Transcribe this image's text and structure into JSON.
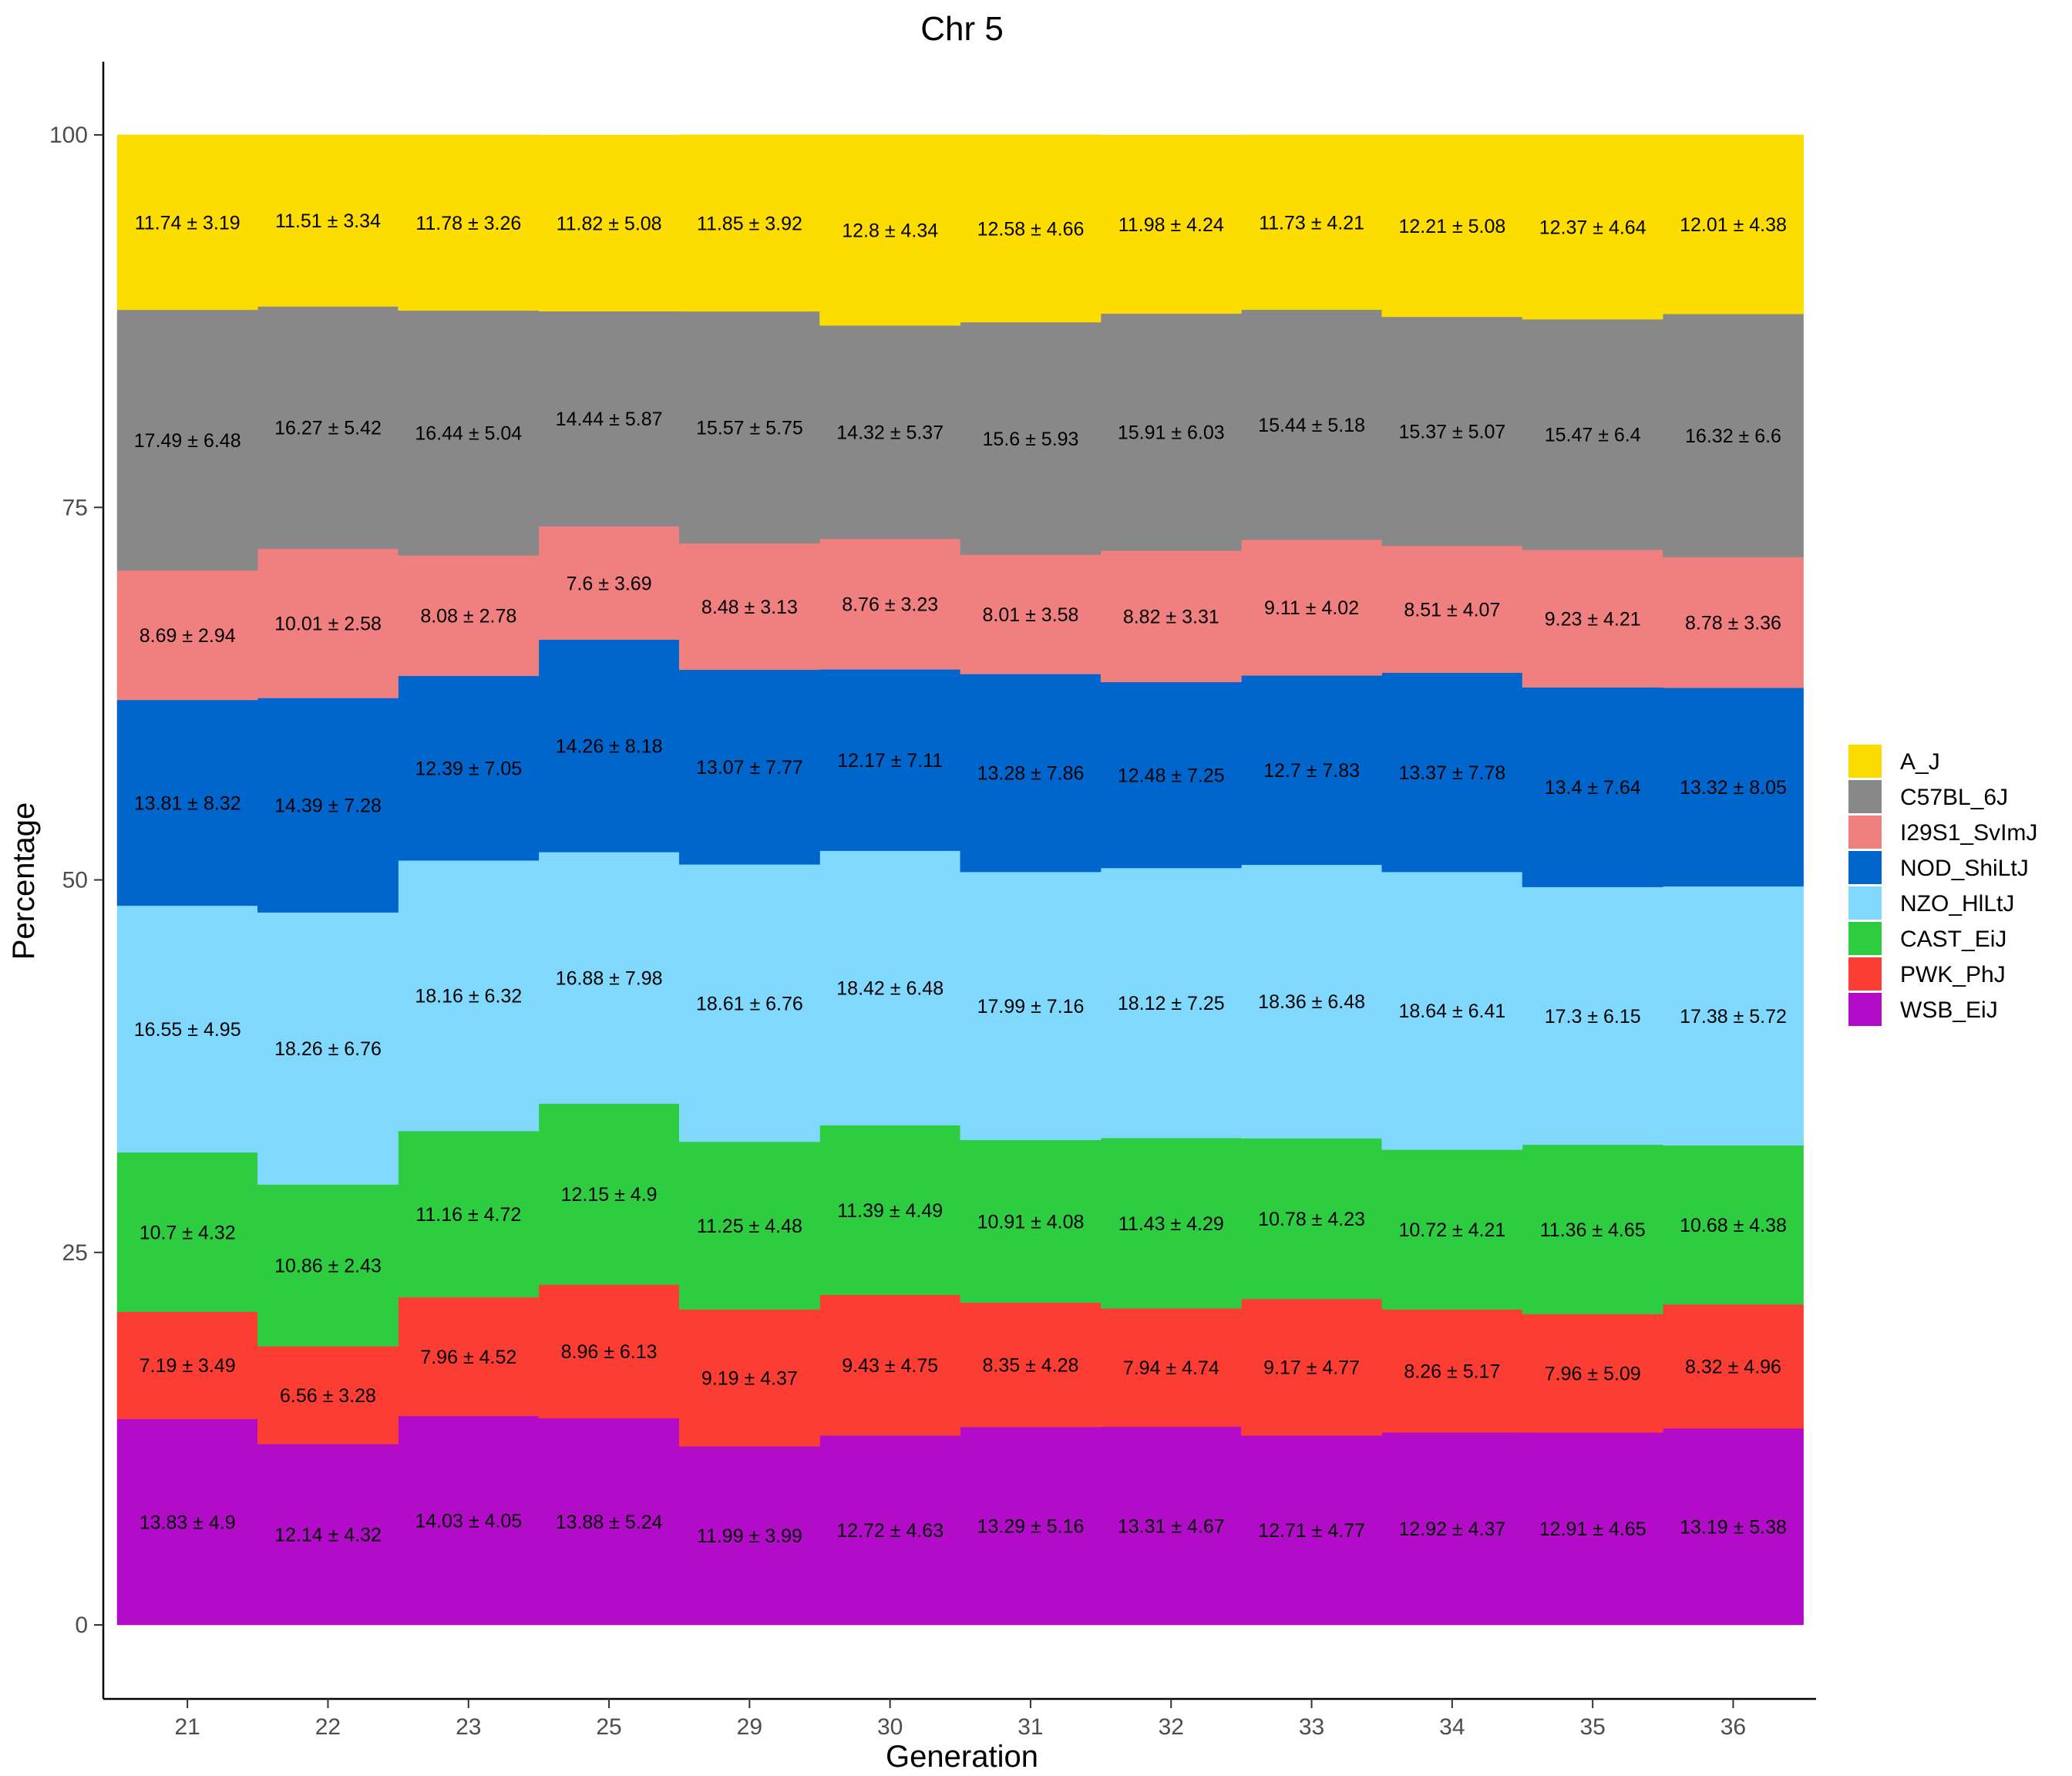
{
  "chart_data": {
    "type": "area",
    "title": "Chr 5",
    "xlabel": "Generation",
    "ylabel": "Percentage",
    "ylim": [
      -5,
      105
    ],
    "yticks": [
      0,
      25,
      50,
      75,
      100
    ],
    "categories": [
      "21",
      "22",
      "23",
      "25",
      "29",
      "30",
      "31",
      "32",
      "33",
      "34",
      "35",
      "36"
    ],
    "stacking": "bottom-to-top",
    "legend_position": "right",
    "grid": false,
    "series": [
      {
        "name": "WSB_EiJ",
        "color": "#b20cc9",
        "values": [
          13.83,
          12.14,
          14.03,
          13.88,
          11.99,
          12.72,
          13.29,
          13.31,
          12.71,
          12.92,
          12.91,
          13.19
        ],
        "labels": [
          "13.83 ± 4.9",
          "12.14 ± 4.32",
          "14.03 ± 4.05",
          "13.88 ± 5.24",
          "11.99 ± 3.99",
          "12.72 ± 4.63",
          "13.29 ± 5.16",
          "13.31 ± 4.67",
          "12.71 ± 4.77",
          "12.92 ± 4.37",
          "12.91 ± 4.65",
          "13.19 ± 5.38"
        ]
      },
      {
        "name": "PWK_PhJ",
        "color": "#fc3d33",
        "values": [
          7.19,
          6.56,
          7.96,
          8.96,
          9.19,
          9.43,
          8.35,
          7.94,
          9.17,
          8.26,
          7.96,
          8.32
        ],
        "labels": [
          "7.19 ± 3.49",
          "6.56 ± 3.28",
          "7.96 ± 4.52",
          "8.96 ± 6.13",
          "9.19 ± 4.37",
          "9.43 ± 4.75",
          "8.35 ± 4.28",
          "7.94 ± 4.74",
          "9.17 ± 4.77",
          "8.26 ± 5.17",
          "7.96 ± 5.09",
          "8.32 ± 4.96"
        ]
      },
      {
        "name": "CAST_EiJ",
        "color": "#2ecc40",
        "values": [
          10.7,
          10.86,
          11.16,
          12.15,
          11.25,
          11.39,
          10.91,
          11.43,
          10.78,
          10.72,
          11.36,
          10.68
        ],
        "labels": [
          "10.7 ± 4.32",
          "10.86 ± 2.43",
          "11.16 ± 4.72",
          "12.15 ± 4.9",
          "11.25 ± 4.48",
          "11.39 ± 4.49",
          "10.91 ± 4.08",
          "11.43 ± 4.29",
          "10.78 ± 4.23",
          "10.72 ± 4.21",
          "11.36 ± 4.65",
          "10.68 ± 4.38"
        ]
      },
      {
        "name": "NZO_HlLtJ",
        "color": "#80d9fc",
        "values": [
          16.55,
          18.26,
          18.16,
          16.88,
          18.61,
          18.42,
          17.99,
          18.12,
          18.36,
          18.64,
          17.3,
          17.38
        ],
        "labels": [
          "16.55 ± 4.95",
          "18.26 ± 6.76",
          "18.16 ± 6.32",
          "16.88 ± 7.98",
          "18.61 ± 6.76",
          "18.42 ± 6.48",
          "17.99 ± 7.16",
          "18.12 ± 7.25",
          "18.36 ± 6.48",
          "18.64 ± 6.41",
          "17.3 ± 6.15",
          "17.38 ± 5.72"
        ]
      },
      {
        "name": "NOD_ShiLtJ",
        "color": "#0066cc",
        "values": [
          13.81,
          14.39,
          12.39,
          14.26,
          13.07,
          12.17,
          13.28,
          12.48,
          12.7,
          13.37,
          13.4,
          13.32
        ],
        "labels": [
          "13.81 ± 8.32",
          "14.39 ± 7.28",
          "12.39 ± 7.05",
          "14.26 ± 8.18",
          "13.07 ± 7.77",
          "12.17 ± 7.11",
          "13.28 ± 7.86",
          "12.48 ± 7.25",
          "12.7 ± 7.83",
          "13.37 ± 7.78",
          "13.4 ± 7.64",
          "13.32 ± 8.05"
        ]
      },
      {
        "name": "I29S1_SvImJ",
        "color": "#f08080",
        "values": [
          8.69,
          10.01,
          8.08,
          7.6,
          8.48,
          8.76,
          8.01,
          8.82,
          9.11,
          8.51,
          9.23,
          8.78
        ],
        "labels": [
          "8.69 ± 2.94",
          "10.01 ± 2.58",
          "8.08 ± 2.78",
          "7.6 ± 3.69",
          "8.48 ± 3.13",
          "8.76 ± 3.23",
          "8.01 ± 3.58",
          "8.82 ± 3.31",
          "9.11 ± 4.02",
          "8.51 ± 4.07",
          "9.23 ± 4.21",
          "8.78 ± 3.36"
        ]
      },
      {
        "name": "C57BL_6J",
        "color": "#888888",
        "values": [
          17.49,
          16.27,
          16.44,
          14.44,
          15.57,
          14.32,
          15.6,
          15.91,
          15.44,
          15.37,
          15.47,
          16.32
        ],
        "labels": [
          "17.49 ± 6.48",
          "16.27 ± 5.42",
          "16.44 ± 5.04",
          "14.44 ± 5.87",
          "15.57 ± 5.75",
          "14.32 ± 5.37",
          "15.6 ± 5.93",
          "15.91 ± 6.03",
          "15.44 ± 5.18",
          "15.37 ± 5.07",
          "15.47 ± 6.4",
          "16.32 ± 6.6"
        ]
      },
      {
        "name": "A_J",
        "color": "#fddc00",
        "values": [
          11.74,
          11.51,
          11.78,
          11.82,
          11.85,
          12.8,
          12.58,
          11.98,
          11.73,
          12.21,
          12.37,
          12.01
        ],
        "labels": [
          "11.74 ± 3.19",
          "11.51 ± 3.34",
          "11.78 ± 3.26",
          "11.82 ± 5.08",
          "11.85 ± 3.92",
          "12.8 ± 4.34",
          "12.58 ± 4.66",
          "11.98 ± 4.24",
          "11.73 ± 4.21",
          "12.21 ± 5.08",
          "12.37 ± 4.64",
          "12.01 ± 4.38"
        ]
      }
    ],
    "legend_order": [
      "A_J",
      "C57BL_6J",
      "I29S1_SvImJ",
      "NOD_ShiLtJ",
      "NZO_HlLtJ",
      "CAST_EiJ",
      "PWK_PhJ",
      "WSB_EiJ"
    ],
    "legend_labels": {
      "A_J": "A_J",
      "C57BL_6J": "C57BL_6J",
      "I29S1_SvImJ": "I29S1_SvImJ",
      "NOD_ShiLtJ": "NOD_ShiLtJ",
      "NZO_HlLtJ": "NZO_HlLtJ",
      "CAST_EiJ": "CAST_EiJ",
      "PWK_PhJ": "PWK_PhJ",
      "WSB_EiJ": "WSB_EiJ"
    }
  }
}
